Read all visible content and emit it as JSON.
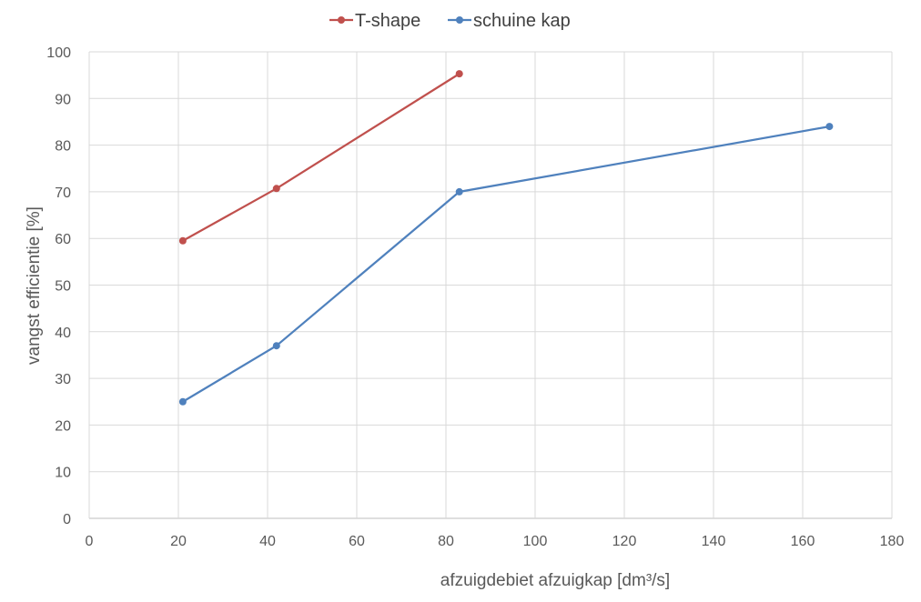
{
  "chart_data": {
    "type": "line",
    "title": "",
    "xlabel": "afzuigdebiet afzuigkap [dm³/s]",
    "ylabel": "vangst efficientie  [%]",
    "xlim": [
      0,
      180
    ],
    "ylim": [
      0,
      100
    ],
    "x_ticks": [
      0,
      20,
      40,
      60,
      80,
      100,
      120,
      140,
      160,
      180
    ],
    "y_ticks": [
      0,
      10,
      20,
      30,
      40,
      50,
      60,
      70,
      80,
      90,
      100
    ],
    "grid": true,
    "legend_position": "top",
    "series": [
      {
        "name": "T-shape",
        "color": "#c0504d",
        "x": [
          21,
          42,
          83
        ],
        "y": [
          59.5,
          70.7,
          95.3
        ]
      },
      {
        "name": "schuine kap",
        "color": "#4f81bd",
        "x": [
          21,
          42,
          83,
          166
        ],
        "y": [
          25,
          37,
          70,
          84
        ]
      }
    ]
  }
}
